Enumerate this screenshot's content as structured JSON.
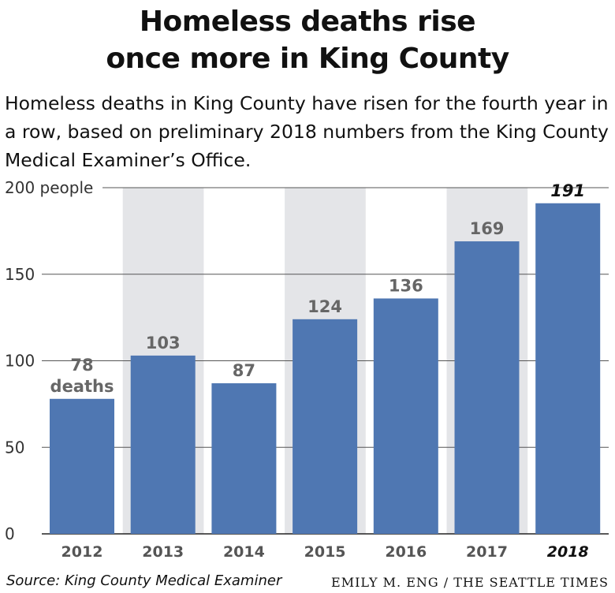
{
  "title_lines": [
    "Homeless deaths rise",
    "once more in King County"
  ],
  "subtitle": "Homeless deaths in King County have risen for the fourth year in a row, based on preliminary 2018 numbers from the King County Medical Examiner’s Office.",
  "source": "Source: King County Medical Examiner",
  "credit": "EMILY M. ENG / THE SEATTLE TIMES",
  "colors": {
    "bar": "#4f77b2",
    "band": "#e4e5e8",
    "label": "#666666",
    "grid": "#555555"
  },
  "chart_data": {
    "type": "bar",
    "title": "Homeless deaths rise once more in King County",
    "categories": [
      "2012",
      "2013",
      "2014",
      "2015",
      "2016",
      "2017",
      "2018"
    ],
    "values": [
      78,
      103,
      87,
      124,
      136,
      169,
      191
    ],
    "first_value_unit": "deaths",
    "y_ticks": [
      "0",
      "50",
      "100",
      "150",
      "200 people"
    ],
    "y_tick_values": [
      0,
      50,
      100,
      150,
      200
    ],
    "ylim": [
      0,
      200
    ],
    "highlight_category": "2018",
    "shaded_categories": [
      "2013",
      "2015",
      "2017"
    ],
    "grid": true
  }
}
